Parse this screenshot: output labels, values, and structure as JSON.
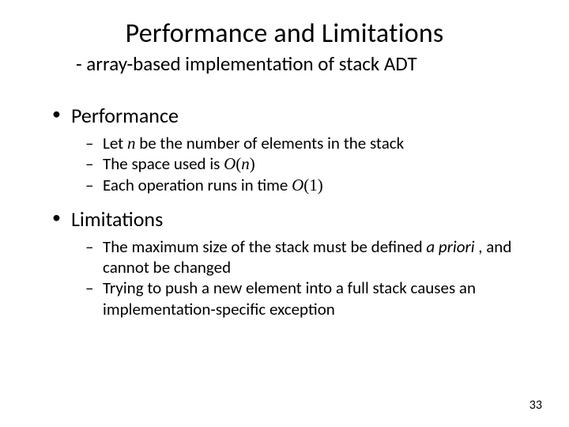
{
  "slide": {
    "title": "Performance and Limitations",
    "subtitle": "- array-based implementation of stack ADT",
    "page_number": "33",
    "background_color": "#ffffff",
    "text_color": "#000000",
    "title_fontsize": 34,
    "subtitle_fontsize": 25,
    "bullet1_fontsize": 26,
    "bullet2_fontsize": 21,
    "bullets": [
      {
        "label": "Performance",
        "sub": [
          {
            "pre": "Let ",
            "var": "n",
            "post": " be the number of elements in the stack"
          },
          {
            "pre": "The space used is ",
            "big_o_open": "O",
            "paren_open": "(",
            "arg": "n",
            "paren_close": ")"
          },
          {
            "pre": "Each operation runs in time ",
            "big_o_open": "O",
            "paren_open": "(",
            "arg_plain": "1",
            "paren_close": ")"
          }
        ]
      },
      {
        "label": "Limitations",
        "sub": [
          {
            "pre": "The maximum size of the stack must be defined ",
            "ital": "a priori ",
            "post": ", and cannot be changed"
          },
          {
            "pre": "Trying to push a new element into a full stack causes an implementation-specific exception"
          }
        ]
      }
    ]
  }
}
